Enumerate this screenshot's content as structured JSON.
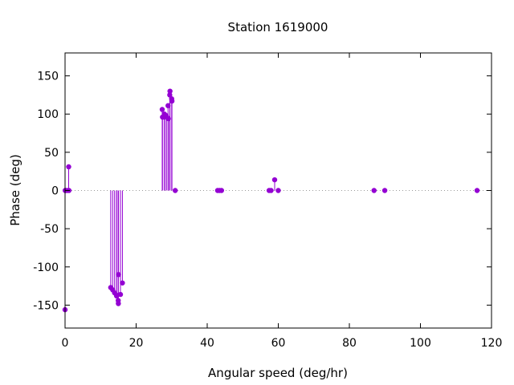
{
  "chart_data": {
    "type": "scatter",
    "style": "impulses-with-points",
    "title": "Station 1619000",
    "xlabel": "Angular speed (deg/hr)",
    "ylabel": "Phase (deg)",
    "xlim": [
      0,
      120
    ],
    "ylim": [
      -180,
      180
    ],
    "xticks": [
      0,
      20,
      40,
      60,
      80,
      100,
      120
    ],
    "yticks": [
      -150,
      -100,
      -50,
      0,
      50,
      100,
      150
    ],
    "zero_line": "dotted",
    "grid": false,
    "legend": "none",
    "color": "#9400d3",
    "series": [
      {
        "x": [
          0.0,
          0.04,
          0.08,
          0.54,
          1.02,
          1.1,
          12.85,
          13.4,
          13.94,
          14.49,
          14.5,
          14.96,
          15.0,
          15.04,
          15.59,
          16.14,
          27.34,
          27.42,
          27.9,
          27.97,
          28.44,
          28.51,
          28.98,
          29.08,
          29.46,
          29.53,
          30.0,
          30.08,
          31.0,
          42.93,
          43.48,
          44.03,
          57.42,
          57.97,
          58.98,
          60.0,
          86.95,
          89.96,
          115.94
        ],
        "y": [
          -156,
          0,
          0,
          0,
          31,
          0,
          -127,
          -130,
          -134,
          -137,
          -138,
          -144,
          -148,
          -110,
          -136,
          -121,
          106,
          96,
          96,
          100,
          98,
          97,
          111,
          94,
          125,
          130,
          120,
          117,
          0,
          0,
          0,
          0,
          0,
          0,
          14,
          0,
          0,
          0,
          0
        ]
      }
    ]
  }
}
